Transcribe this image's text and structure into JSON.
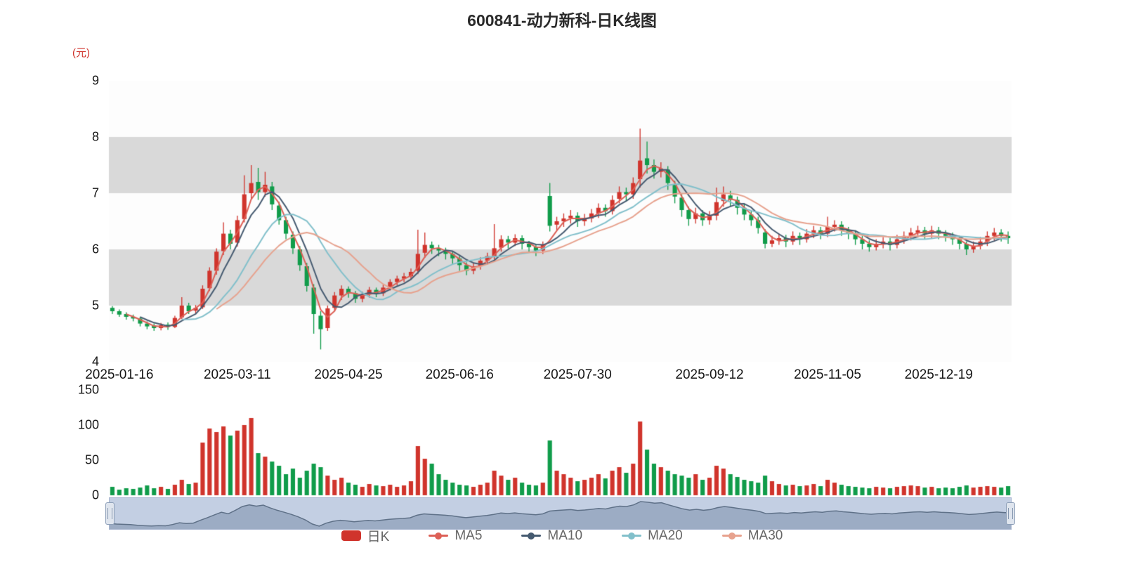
{
  "title": "600841-动力新科-日K线图",
  "unit": "(元)",
  "colors": {
    "up": "#d0342c",
    "down": "#109c4a",
    "band_gray": "#d9d9d9",
    "plot_bg": "#fdfdfd",
    "axis_text": "#161616",
    "unit_text": "#d0342c",
    "nav_bg": "#c3cfe3",
    "nav_area_fill": "#8fa0ba",
    "nav_line": "#5f7188"
  },
  "legend": {
    "items": [
      {
        "label": "日K",
        "color": "#d0342c",
        "marker": "rect"
      },
      {
        "label": "MA5",
        "color": "#dd6056",
        "marker": "line"
      },
      {
        "label": "MA10",
        "color": "#455a70",
        "marker": "line"
      },
      {
        "label": "MA20",
        "color": "#82c0cb",
        "marker": "line"
      },
      {
        "label": "MA30",
        "color": "#e7a28e",
        "marker": "line"
      }
    ]
  },
  "chart_data": {
    "type": "candlestick",
    "title": "600841-动力新科-日K线图",
    "y_axis": {
      "unit": "元",
      "min": 4,
      "max": 9,
      "ticks": [
        9,
        8,
        7,
        6,
        5,
        4
      ]
    },
    "volume_axis": {
      "max": 150,
      "ticks": [
        150,
        100,
        50,
        0
      ]
    },
    "background_gray_bands": [
      [
        8,
        7
      ],
      [
        6,
        5
      ]
    ],
    "legend_position": "bottom",
    "x_tick_labels": [
      "2025-01-16",
      "2025-03-11",
      "2025-04-25",
      "2025-06-16",
      "2025-07-30",
      "2025-09-12",
      "2025-11-05",
      "2025-12-19"
    ],
    "x_tick_indices": [
      1,
      18,
      34,
      50,
      67,
      86,
      103,
      119
    ],
    "ma_series": [
      {
        "name": "MA5",
        "period": 5
      },
      {
        "name": "MA10",
        "period": 10
      },
      {
        "name": "MA20",
        "period": 20
      },
      {
        "name": "MA30",
        "period": 30
      }
    ],
    "candles_format": [
      "open",
      "close",
      "low",
      "high"
    ],
    "candles": [
      [
        4.96,
        4.9,
        4.85,
        4.99
      ],
      [
        4.9,
        4.84,
        4.8,
        4.93
      ],
      [
        4.85,
        4.8,
        4.75,
        4.88
      ],
      [
        4.8,
        4.77,
        4.72,
        4.84
      ],
      [
        4.77,
        4.68,
        4.63,
        4.8
      ],
      [
        4.68,
        4.63,
        4.58,
        4.72
      ],
      [
        4.64,
        4.6,
        4.55,
        4.68
      ],
      [
        4.6,
        4.65,
        4.56,
        4.69
      ],
      [
        4.66,
        4.62,
        4.57,
        4.7
      ],
      [
        4.62,
        4.78,
        4.6,
        4.82
      ],
      [
        4.79,
        5.0,
        4.76,
        5.15
      ],
      [
        5.0,
        4.9,
        4.85,
        5.05
      ],
      [
        4.91,
        4.96,
        4.86,
        5.01
      ],
      [
        4.97,
        5.3,
        4.94,
        5.36
      ],
      [
        5.31,
        5.62,
        5.26,
        5.68
      ],
      [
        5.62,
        5.96,
        5.55,
        6.02
      ],
      [
        5.97,
        6.28,
        5.9,
        6.48
      ],
      [
        6.28,
        6.1,
        6.0,
        6.35
      ],
      [
        6.12,
        6.52,
        6.05,
        6.6
      ],
      [
        6.54,
        6.98,
        6.48,
        7.32
      ],
      [
        7.0,
        7.18,
        6.9,
        7.5
      ],
      [
        7.2,
        7.02,
        6.88,
        7.45
      ],
      [
        7.02,
        7.15,
        6.94,
        7.38
      ],
      [
        7.12,
        6.8,
        6.7,
        7.2
      ],
      [
        6.78,
        6.52,
        6.44,
        6.85
      ],
      [
        6.52,
        6.28,
        6.18,
        6.58
      ],
      [
        6.26,
        6.02,
        5.92,
        6.32
      ],
      [
        6.0,
        5.72,
        5.62,
        6.06
      ],
      [
        5.7,
        5.35,
        5.25,
        5.76
      ],
      [
        5.32,
        4.85,
        4.5,
        5.38
      ],
      [
        4.82,
        4.58,
        4.22,
        4.9
      ],
      [
        4.6,
        4.95,
        4.55,
        5.0
      ],
      [
        4.96,
        5.18,
        4.9,
        5.24
      ],
      [
        5.18,
        5.3,
        5.1,
        5.36
      ],
      [
        5.3,
        5.22,
        5.14,
        5.34
      ],
      [
        5.22,
        5.12,
        5.05,
        5.26
      ],
      [
        5.12,
        5.2,
        5.06,
        5.25
      ],
      [
        5.2,
        5.28,
        5.14,
        5.33
      ],
      [
        5.28,
        5.22,
        5.15,
        5.32
      ],
      [
        5.22,
        5.32,
        5.17,
        5.37
      ],
      [
        5.33,
        5.42,
        5.27,
        5.47
      ],
      [
        5.42,
        5.48,
        5.36,
        5.53
      ],
      [
        5.48,
        5.52,
        5.42,
        5.58
      ],
      [
        5.52,
        5.6,
        5.46,
        5.66
      ],
      [
        5.62,
        5.92,
        5.56,
        6.35
      ],
      [
        5.94,
        6.08,
        5.85,
        6.3
      ],
      [
        6.08,
        6.02,
        5.92,
        6.14
      ],
      [
        6.02,
        5.98,
        5.88,
        6.08
      ],
      [
        5.98,
        5.92,
        5.82,
        6.03
      ],
      [
        5.92,
        5.84,
        5.74,
        5.97
      ],
      [
        5.84,
        5.72,
        5.62,
        5.88
      ],
      [
        5.72,
        5.62,
        5.54,
        5.77
      ],
      [
        5.62,
        5.7,
        5.56,
        5.76
      ],
      [
        5.7,
        5.8,
        5.64,
        5.86
      ],
      [
        5.8,
        5.88,
        5.74,
        5.94
      ],
      [
        5.88,
        6.02,
        5.82,
        6.45
      ],
      [
        6.03,
        6.18,
        5.96,
        6.25
      ],
      [
        6.18,
        6.12,
        6.02,
        6.24
      ],
      [
        6.12,
        6.2,
        6.06,
        6.27
      ],
      [
        6.2,
        6.1,
        6.0,
        6.25
      ],
      [
        6.1,
        6.04,
        5.94,
        6.15
      ],
      [
        6.04,
        5.98,
        5.88,
        6.09
      ],
      [
        5.98,
        6.08,
        5.92,
        6.14
      ],
      [
        6.95,
        6.42,
        6.32,
        7.18
      ],
      [
        6.44,
        6.5,
        6.34,
        6.58
      ],
      [
        6.5,
        6.55,
        6.4,
        6.64
      ],
      [
        6.56,
        6.6,
        6.46,
        6.7
      ],
      [
        6.6,
        6.5,
        6.4,
        6.66
      ],
      [
        6.5,
        6.55,
        6.42,
        6.63
      ],
      [
        6.55,
        6.64,
        6.48,
        6.72
      ],
      [
        6.64,
        6.74,
        6.56,
        6.82
      ],
      [
        6.74,
        6.68,
        6.58,
        6.8
      ],
      [
        6.68,
        6.88,
        6.62,
        6.96
      ],
      [
        6.9,
        7.02,
        6.82,
        7.12
      ],
      [
        7.02,
        6.98,
        6.86,
        7.1
      ],
      [
        6.98,
        7.18,
        6.9,
        7.28
      ],
      [
        7.25,
        7.58,
        7.1,
        8.15
      ],
      [
        7.62,
        7.5,
        7.35,
        7.92
      ],
      [
        7.5,
        7.38,
        7.26,
        7.6
      ],
      [
        7.38,
        7.44,
        7.28,
        7.55
      ],
      [
        7.42,
        7.18,
        7.06,
        7.48
      ],
      [
        7.16,
        6.94,
        6.82,
        7.22
      ],
      [
        6.92,
        6.7,
        6.58,
        6.98
      ],
      [
        6.7,
        6.54,
        6.42,
        6.76
      ],
      [
        6.54,
        6.64,
        6.46,
        6.74
      ],
      [
        6.64,
        6.52,
        6.42,
        6.7
      ],
      [
        6.52,
        6.6,
        6.44,
        6.68
      ],
      [
        6.6,
        6.84,
        6.52,
        7.1
      ],
      [
        6.86,
        6.98,
        6.76,
        7.12
      ],
      [
        6.96,
        6.88,
        6.76,
        7.04
      ],
      [
        6.88,
        6.74,
        6.62,
        6.94
      ],
      [
        6.74,
        6.62,
        6.52,
        6.8
      ],
      [
        6.62,
        6.52,
        6.42,
        6.68
      ],
      [
        6.52,
        6.38,
        6.28,
        6.58
      ],
      [
        6.3,
        6.1,
        6.02,
        6.36
      ],
      [
        6.1,
        6.16,
        6.04,
        6.24
      ],
      [
        6.16,
        6.2,
        6.08,
        6.28
      ],
      [
        6.2,
        6.14,
        6.04,
        6.26
      ],
      [
        6.14,
        6.24,
        6.08,
        6.32
      ],
      [
        6.24,
        6.18,
        6.08,
        6.3
      ],
      [
        6.18,
        6.28,
        6.12,
        6.36
      ],
      [
        6.28,
        6.34,
        6.2,
        6.42
      ],
      [
        6.34,
        6.28,
        6.18,
        6.4
      ],
      [
        6.28,
        6.4,
        6.22,
        6.58
      ],
      [
        6.4,
        6.44,
        6.32,
        6.52
      ],
      [
        6.44,
        6.34,
        6.24,
        6.5
      ],
      [
        6.34,
        6.28,
        6.18,
        6.4
      ],
      [
        6.28,
        6.18,
        6.08,
        6.34
      ],
      [
        6.18,
        6.1,
        6.0,
        6.24
      ],
      [
        6.1,
        6.04,
        5.96,
        6.16
      ],
      [
        6.04,
        6.1,
        5.98,
        6.18
      ],
      [
        6.1,
        6.14,
        6.02,
        6.22
      ],
      [
        6.14,
        6.08,
        5.98,
        6.2
      ],
      [
        6.08,
        6.18,
        6.02,
        6.26
      ],
      [
        6.18,
        6.24,
        6.1,
        6.32
      ],
      [
        6.24,
        6.3,
        6.16,
        6.38
      ],
      [
        6.3,
        6.34,
        6.22,
        6.42
      ],
      [
        6.34,
        6.28,
        6.18,
        6.4
      ],
      [
        6.28,
        6.34,
        6.2,
        6.42
      ],
      [
        6.34,
        6.28,
        6.18,
        6.4
      ],
      [
        6.28,
        6.24,
        6.14,
        6.34
      ],
      [
        6.24,
        6.18,
        6.08,
        6.3
      ],
      [
        6.18,
        6.1,
        6.0,
        6.24
      ],
      [
        6.1,
        6.0,
        5.9,
        6.14
      ],
      [
        6.0,
        6.06,
        5.94,
        6.14
      ],
      [
        6.06,
        6.14,
        6.0,
        6.22
      ],
      [
        6.14,
        6.24,
        6.06,
        6.32
      ],
      [
        6.24,
        6.3,
        6.16,
        6.38
      ],
      [
        6.3,
        6.24,
        6.14,
        6.36
      ],
      [
        6.24,
        6.2,
        6.1,
        6.32
      ]
    ],
    "volumes": [
      12,
      8,
      10,
      9,
      11,
      14,
      10,
      12,
      9,
      15,
      22,
      16,
      18,
      75,
      95,
      90,
      98,
      85,
      92,
      100,
      110,
      60,
      55,
      48,
      42,
      30,
      38,
      25,
      35,
      45,
      40,
      28,
      22,
      25,
      18,
      15,
      12,
      16,
      14,
      13,
      15,
      12,
      14,
      20,
      70,
      52,
      45,
      30,
      22,
      18,
      15,
      14,
      12,
      15,
      18,
      35,
      28,
      22,
      25,
      18,
      15,
      14,
      18,
      78,
      35,
      30,
      25,
      20,
      22,
      25,
      30,
      24,
      35,
      40,
      32,
      45,
      105,
      65,
      45,
      40,
      35,
      30,
      28,
      25,
      30,
      22,
      25,
      42,
      38,
      30,
      26,
      22,
      20,
      18,
      28,
      20,
      16,
      14,
      15,
      13,
      14,
      16,
      13,
      22,
      18,
      15,
      13,
      12,
      11,
      10,
      12,
      11,
      10,
      12,
      13,
      14,
      13,
      11,
      12,
      10,
      11,
      10,
      12,
      14,
      11,
      12,
      13,
      12,
      11,
      13
    ]
  }
}
